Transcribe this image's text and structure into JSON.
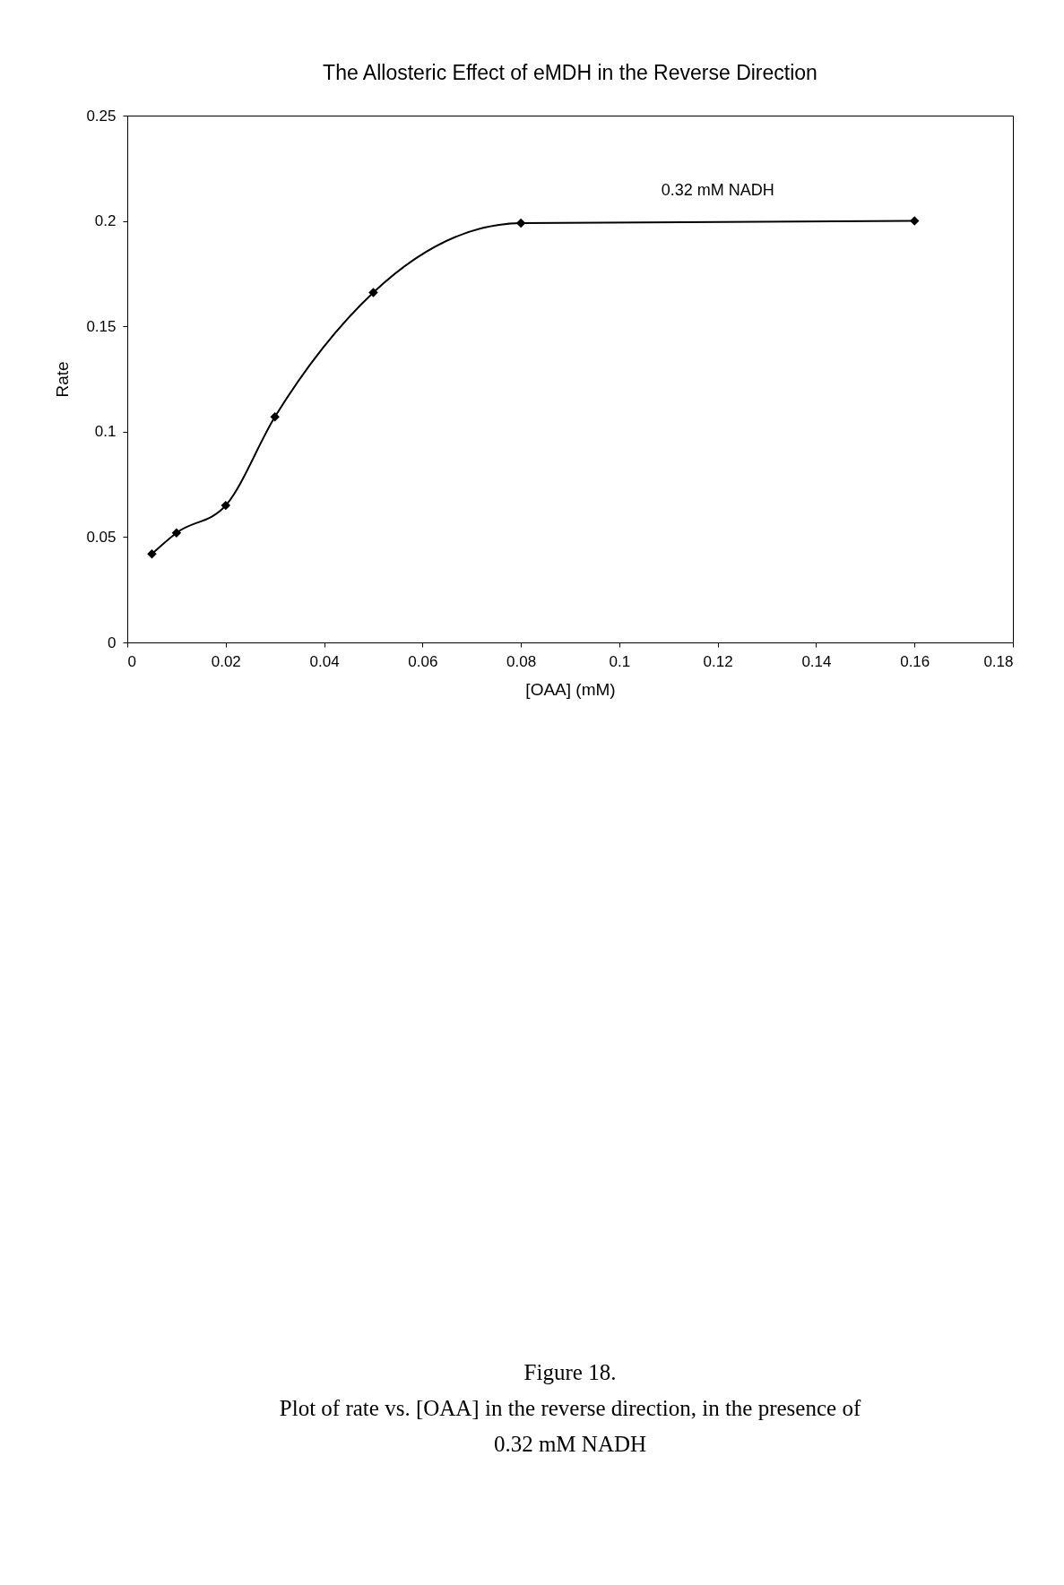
{
  "chart_data": {
    "type": "line",
    "title": "The Allosteric Effect of eMDH in the Reverse Direction",
    "xlabel": "[OAA] (mM)",
    "ylabel": "Rate",
    "x": [
      0.005,
      0.01,
      0.02,
      0.03,
      0.05,
      0.08,
      0.16
    ],
    "series": [
      {
        "name": "0.32 mM NADH",
        "color": "#000000",
        "values": [
          0.042,
          0.052,
          0.065,
          0.107,
          0.166,
          0.199,
          0.2
        ]
      }
    ],
    "xlim": [
      0,
      0.18
    ],
    "xticks": [
      0,
      0.02,
      0.04,
      0.06,
      0.08,
      0.1,
      0.12,
      0.14,
      0.16,
      0.18
    ],
    "ylim": [
      0,
      0.25
    ],
    "yticks": [
      0,
      0.05,
      0.1,
      0.15,
      0.2,
      0.25
    ],
    "grid": false,
    "marker": "diamond",
    "line_style": "solid",
    "annotations": [
      "Figure 18.",
      "Plot of rate vs. [OAA] in the reverse direction, in the presence of 0.32 mM NADH"
    ]
  }
}
